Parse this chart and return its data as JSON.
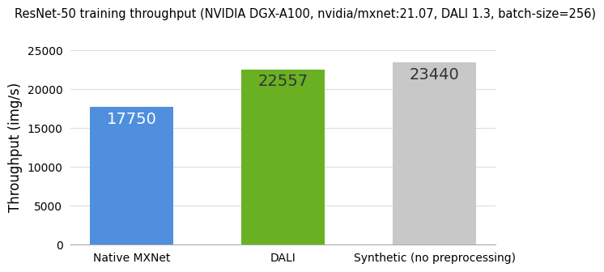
{
  "title": "ResNet-50 training throughput (NVIDIA DGX-A100, nvidia/mxnet:21.07, DALI 1.3, batch-size=256)",
  "categories": [
    "Native MXNet",
    "DALI",
    "Synthetic (no preprocessing)"
  ],
  "values": [
    17750,
    22557,
    23440
  ],
  "bar_colors": [
    "#4f8fdd",
    "#6ab023",
    "#c8c8c8"
  ],
  "annotations": [
    "17750",
    "22557",
    "23440"
  ],
  "annotation_colors": [
    "white",
    "#333333",
    "#333333"
  ],
  "ylabel": "Throughput (img/s)",
  "ylim": [
    0,
    25000
  ],
  "yticks": [
    0,
    5000,
    10000,
    15000,
    20000,
    25000
  ],
  "title_fontsize": 10.5,
  "label_fontsize": 12,
  "tick_fontsize": 10,
  "annotation_fontsize": 14,
  "background_color": "#ffffff",
  "grid_color": "#dddddd",
  "bar_width": 0.55
}
